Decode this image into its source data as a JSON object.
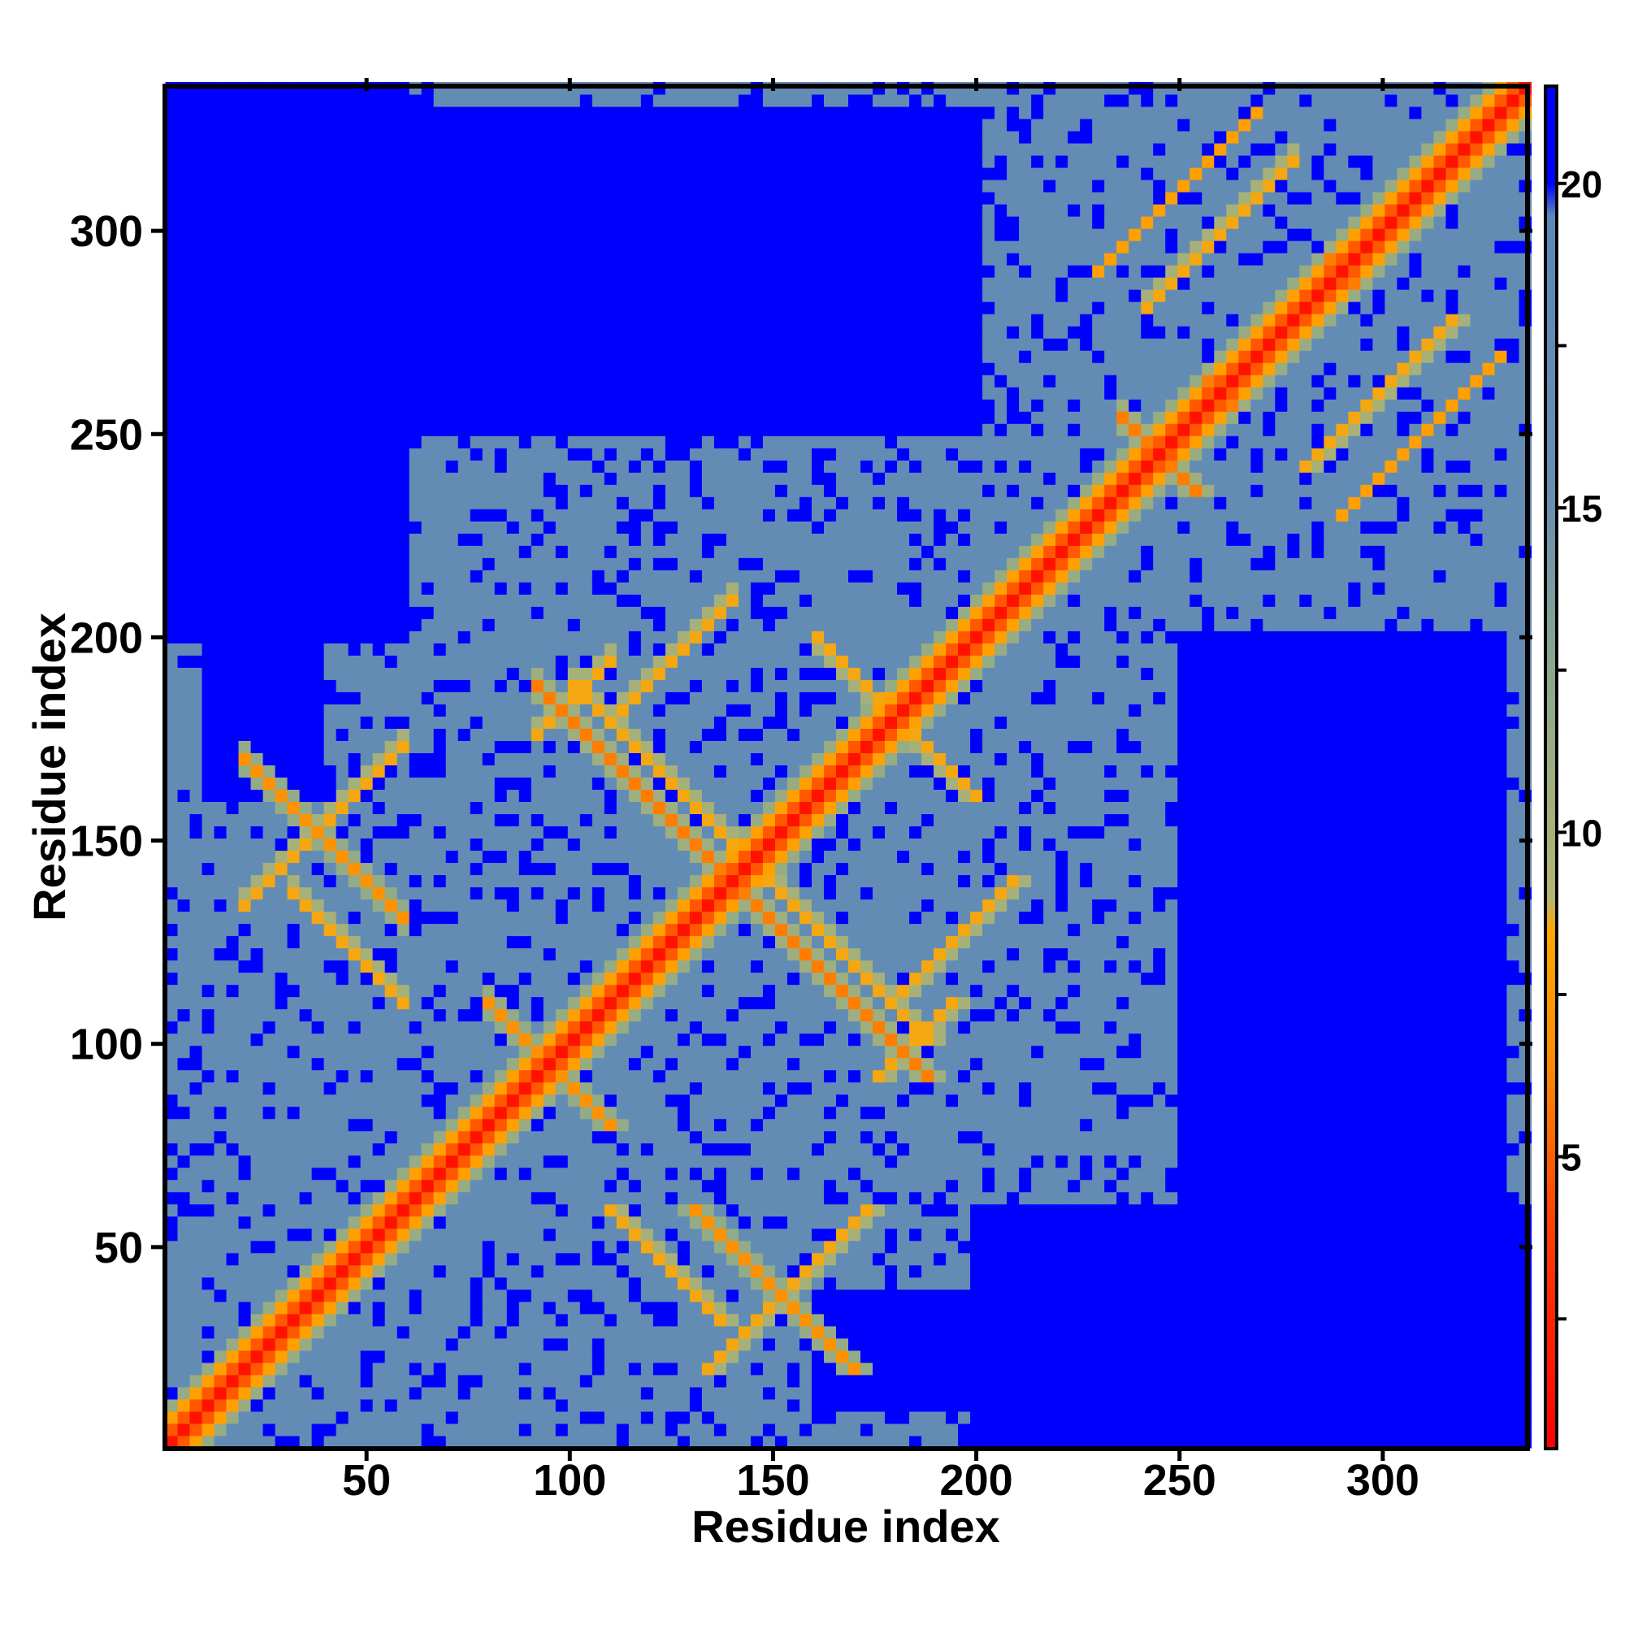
{
  "chart_data": {
    "type": "heatmap",
    "title": "",
    "xlabel": "Residue index",
    "ylabel": "Residue index",
    "n_residues": 335,
    "xlim": [
      1,
      335
    ],
    "ylim": [
      1,
      335
    ],
    "x_ticks": [
      50,
      100,
      150,
      200,
      250,
      300
    ],
    "y_ticks": [
      50,
      100,
      150,
      200,
      250,
      300
    ],
    "x_tick_labels": [
      "50",
      "100",
      "150",
      "200",
      "250",
      "300"
    ],
    "y_tick_labels": [
      "50",
      "100",
      "150",
      "200",
      "250",
      "300"
    ],
    "colorbar": {
      "range": [
        0.5,
        21.5
      ],
      "ticks": [
        5,
        10,
        15,
        20
      ],
      "tick_labels": [
        "5",
        "10",
        "15",
        "20"
      ],
      "minor_ticks": [
        2.5,
        7.5,
        12.5,
        17.5
      ],
      "stops": [
        {
          "value": 0.5,
          "color": "#ff0000"
        },
        {
          "value": 4.0,
          "color": "#ff4000"
        },
        {
          "value": 6.5,
          "color": "#ff8c00"
        },
        {
          "value": 8.5,
          "color": "#ffa500"
        },
        {
          "value": 9.0,
          "color": "#b4b470"
        },
        {
          "value": 12.5,
          "color": "#8aa88c"
        },
        {
          "value": 15.0,
          "color": "#6a8fb0"
        },
        {
          "value": 19.5,
          "color": "#5b88b8"
        },
        {
          "value": 20.0,
          "color": "#0000ff"
        },
        {
          "value": 21.5,
          "color": "#0000ff"
        }
      ]
    },
    "colors": {
      "close_contact": "#ff2000",
      "medium": "#ffa000",
      "transition": "#a8bf8c",
      "mid_distance": "#5b88b8",
      "far": "#0000ff"
    },
    "contact_features": {
      "main_diagonal": {
        "from": 1,
        "to": 335,
        "distance": 1.5
      },
      "antiparallel_bands": [
        {
          "center_sum": 190,
          "i_range": [
            20,
            60
          ],
          "distance": 7
        },
        {
          "center_sum": 170,
          "i_range": [
            30,
            60
          ],
          "distance": 7
        },
        {
          "center_sum": 190,
          "i_range": [
            80,
            110
          ],
          "distance": 7
        },
        {
          "center_sum": 280,
          "i_range": [
            90,
            140
          ],
          "distance": 6
        },
        {
          "center_sum": 290,
          "i_range": [
            100,
            140
          ],
          "distance": 7
        },
        {
          "center_sum": 360,
          "i_range": [
            160,
            200
          ],
          "distance": 7
        },
        {
          "center_sum": 490,
          "i_range": [
            235,
            255
          ],
          "distance": 6
        },
        {
          "center_sum": 520,
          "i_range": [
            255,
            270
          ],
          "distance": 6
        },
        {
          "center_sum": 580,
          "i_range": [
            285,
            310
          ],
          "distance": 6
        }
      ],
      "parallel_bands": [
        {
          "offset": 115,
          "i_range": [
            20,
            60
          ],
          "distance": 7
        },
        {
          "offset": 85,
          "i_range": [
            90,
            110
          ],
          "distance": 7
        },
        {
          "offset": 70,
          "i_range": [
            110,
            140
          ],
          "distance": 7
        },
        {
          "offset": 60,
          "i_range": [
            230,
            270
          ],
          "distance": 8
        },
        {
          "offset": 40,
          "i_range": [
            240,
            280
          ],
          "distance": 7
        }
      ],
      "far_regions": [
        {
          "i": [
            2,
            40
          ],
          "j": [
            250,
            335
          ]
        },
        {
          "i": [
            40,
            120
          ],
          "j": [
            255,
            310
          ]
        },
        {
          "i": [
            200,
            335
          ],
          "j": [
            2,
            60
          ]
        },
        {
          "i": [
            160,
            200
          ],
          "j": [
            10,
            40
          ]
        },
        {
          "i": [
            250,
            330
          ],
          "j": [
            60,
            200
          ]
        }
      ]
    }
  }
}
